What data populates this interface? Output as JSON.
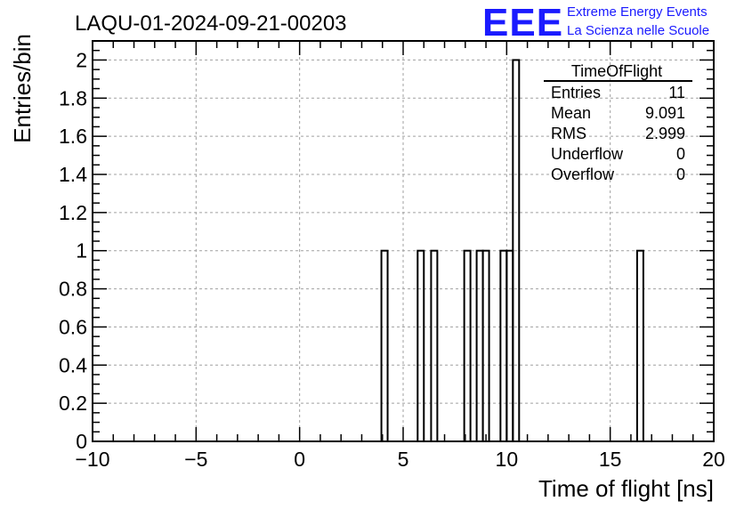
{
  "run_title": "LAQU-01-2024-09-21-00203",
  "logo": {
    "mark": "EEE",
    "line1": "Extreme Energy Events",
    "line2": "La Scienza nelle Scuole",
    "color": "#1a1aff"
  },
  "stats": {
    "title": "TimeOfFlight",
    "rows": [
      {
        "label": "Entries",
        "value": "11"
      },
      {
        "label": "Mean",
        "value": "9.091"
      },
      {
        "label": "RMS",
        "value": "2.999"
      },
      {
        "label": "Underflow",
        "value": "0"
      },
      {
        "label": "Overflow",
        "value": "0"
      }
    ]
  },
  "chart_data": {
    "type": "bar",
    "xlabel": "Time of flight [ns]",
    "ylabel": "Entries/bin",
    "xlim": [
      -10,
      20
    ],
    "ylim": [
      0,
      2.1
    ],
    "bin_width": 0.3,
    "x_ticks": [
      "−10",
      "−5",
      "0",
      "5",
      "10",
      "15",
      "20"
    ],
    "x_tick_values": [
      -10,
      -5,
      0,
      5,
      10,
      15,
      20
    ],
    "y_ticks": [
      "0",
      "0.2",
      "0.4",
      "0.6",
      "0.8",
      "1",
      "1.2",
      "1.4",
      "1.6",
      "1.8",
      "2"
    ],
    "y_tick_values": [
      0,
      0.2,
      0.4,
      0.6,
      0.8,
      1,
      1.2,
      1.4,
      1.6,
      1.8,
      2
    ],
    "grid": true,
    "bins": [
      {
        "x": 3.95,
        "count": 1
      },
      {
        "x": 5.7,
        "count": 1
      },
      {
        "x": 6.35,
        "count": 1
      },
      {
        "x": 7.95,
        "count": 1
      },
      {
        "x": 8.55,
        "count": 1
      },
      {
        "x": 8.85,
        "count": 1
      },
      {
        "x": 9.7,
        "count": 1
      },
      {
        "x": 10.0,
        "count": 1
      },
      {
        "x": 10.3,
        "count": 2
      },
      {
        "x": 16.3,
        "count": 1
      }
    ]
  }
}
